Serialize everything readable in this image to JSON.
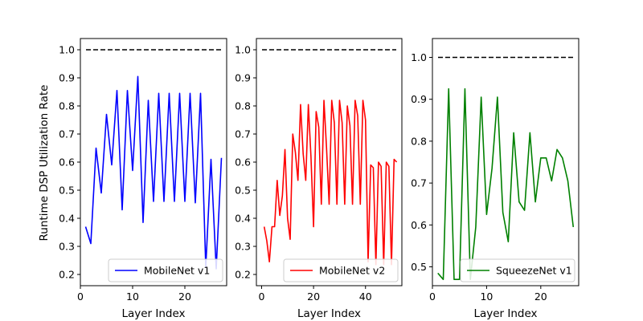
{
  "ylabel": "Runtime DSP Utilization Rate",
  "chart_data": [
    {
      "type": "line",
      "xlabel": "Layer Index",
      "ylabel": "Runtime DSP Utilization Rate",
      "xlim": [
        0,
        28
      ],
      "ylim": [
        0.16,
        1.04
      ],
      "xticks": [
        0,
        10,
        20
      ],
      "yticks": [
        0.2,
        0.3,
        0.4,
        0.5,
        0.6,
        0.7,
        0.8,
        0.9,
        1.0
      ],
      "ytick_labels": [
        "0.2",
        "0.3",
        "0.4",
        "0.5",
        "0.6",
        "0.7",
        "0.8",
        "0.9",
        "1.0"
      ],
      "reference_line": {
        "y": 1.0,
        "style": "dashed",
        "color": "#000000"
      },
      "legend_position": "lower-right",
      "series": [
        {
          "name": "MobileNet v1",
          "color": "#0000ff",
          "x": [
            1,
            2,
            3,
            4,
            5,
            6,
            7,
            8,
            9,
            10,
            11,
            12,
            13,
            14,
            15,
            16,
            17,
            18,
            19,
            20,
            21,
            22,
            23,
            24,
            25,
            26,
            27
          ],
          "y": [
            0.37,
            0.31,
            0.65,
            0.49,
            0.77,
            0.59,
            0.855,
            0.43,
            0.855,
            0.57,
            0.905,
            0.385,
            0.82,
            0.46,
            0.845,
            0.46,
            0.845,
            0.46,
            0.845,
            0.46,
            0.845,
            0.455,
            0.845,
            0.225,
            0.61,
            0.22,
            0.615
          ]
        }
      ]
    },
    {
      "type": "line",
      "xlabel": "Layer Index",
      "ylabel": "",
      "xlim": [
        -2,
        54
      ],
      "ylim": [
        0.16,
        1.04
      ],
      "xticks": [
        0,
        20,
        40
      ],
      "yticks": [
        0.2,
        0.3,
        0.4,
        0.5,
        0.6,
        0.7,
        0.8,
        0.9,
        1.0
      ],
      "ytick_labels": [
        "0.2",
        "0.3",
        "0.4",
        "0.5",
        "0.6",
        "0.7",
        "0.8",
        "0.9",
        "1.0"
      ],
      "reference_line": {
        "y": 1.0,
        "style": "dashed",
        "color": "#000000"
      },
      "legend_position": "lower-right",
      "series": [
        {
          "name": "MobileNet v2",
          "color": "#ff0000",
          "x": [
            1,
            2,
            3,
            4,
            5,
            6,
            7,
            8,
            9,
            10,
            11,
            12,
            13,
            14,
            15,
            16,
            17,
            18,
            19,
            20,
            21,
            22,
            23,
            24,
            25,
            26,
            27,
            28,
            29,
            30,
            31,
            32,
            33,
            34,
            35,
            36,
            37,
            38,
            39,
            40,
            41,
            42,
            43,
            44,
            45,
            46,
            47,
            48,
            49,
            50,
            51,
            52
          ],
          "y": [
            0.37,
            0.32,
            0.245,
            0.37,
            0.37,
            0.535,
            0.41,
            0.48,
            0.645,
            0.4,
            0.325,
            0.7,
            0.635,
            0.535,
            0.805,
            0.63,
            0.535,
            0.805,
            0.62,
            0.37,
            0.78,
            0.725,
            0.45,
            0.82,
            0.65,
            0.45,
            0.82,
            0.74,
            0.45,
            0.82,
            0.74,
            0.45,
            0.8,
            0.73,
            0.45,
            0.82,
            0.765,
            0.45,
            0.82,
            0.75,
            0.245,
            0.59,
            0.58,
            0.235,
            0.6,
            0.585,
            0.235,
            0.6,
            0.585,
            0.235,
            0.61,
            0.6
          ]
        }
      ]
    },
    {
      "type": "line",
      "xlabel": "Layer Index",
      "ylabel": "",
      "xlim": [
        0,
        27
      ],
      "ylim": [
        0.455,
        1.045
      ],
      "xticks": [
        0,
        10,
        20
      ],
      "yticks": [
        0.5,
        0.6,
        0.7,
        0.8,
        0.9,
        1.0
      ],
      "ytick_labels": [
        "0.5",
        "0.6",
        "0.7",
        "0.8",
        "0.9",
        "1.0"
      ],
      "reference_line": {
        "y": 1.0,
        "style": "dashed",
        "color": "#000000"
      },
      "legend_position": "lower-right",
      "series": [
        {
          "name": "SqueezeNet v1",
          "color": "#008000",
          "x": [
            1,
            2,
            3,
            4,
            5,
            6,
            7,
            8,
            9,
            10,
            11,
            12,
            13,
            14,
            15,
            16,
            17,
            18,
            19,
            20,
            21,
            22,
            23,
            24,
            25,
            26
          ],
          "y": [
            0.485,
            0.47,
            0.925,
            0.47,
            0.47,
            0.925,
            0.47,
            0.595,
            0.905,
            0.625,
            0.735,
            0.905,
            0.63,
            0.56,
            0.82,
            0.655,
            0.635,
            0.82,
            0.655,
            0.76,
            0.76,
            0.705,
            0.78,
            0.76,
            0.705,
            0.595
          ]
        }
      ]
    }
  ]
}
